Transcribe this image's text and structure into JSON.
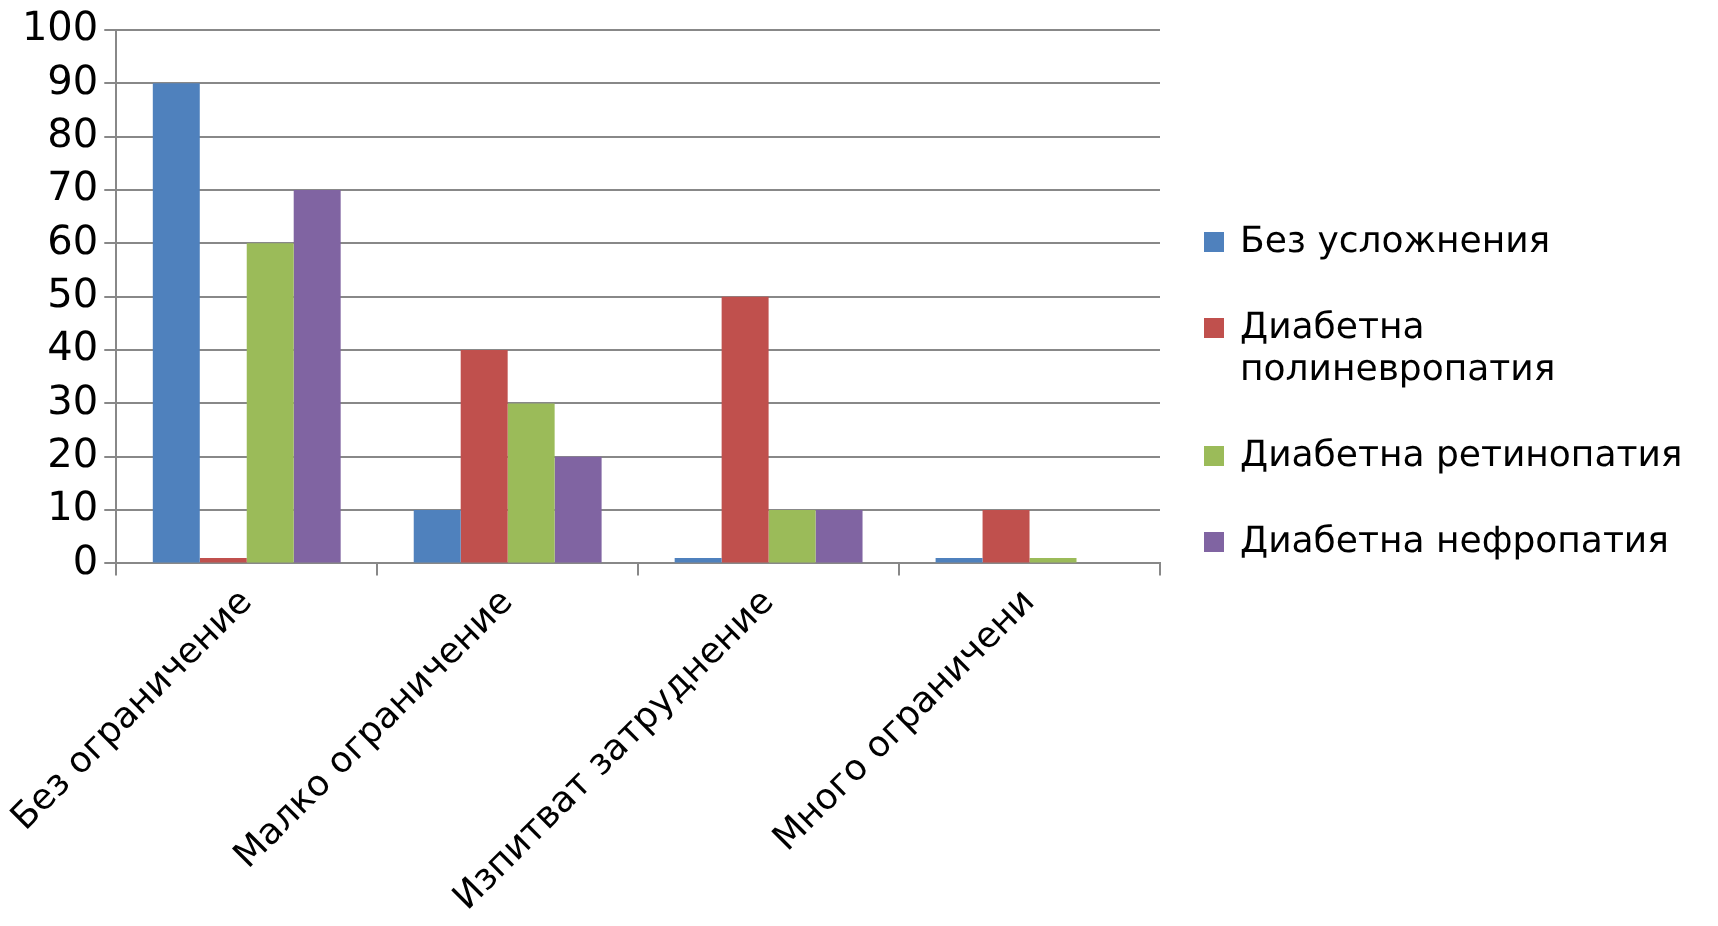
{
  "chart_data": {
    "type": "bar",
    "categories": [
      "Без ограничение",
      "Малко ограничение",
      "Изпитват затруднение",
      "Много ограничени"
    ],
    "series": [
      {
        "name": "Без усложнения",
        "color": "#4f81bd",
        "values": [
          90,
          10,
          1,
          1
        ]
      },
      {
        "name": "Диабетна полиневропатия",
        "color": "#c0504d",
        "values": [
          1,
          40,
          50,
          10
        ]
      },
      {
        "name": "Диабетна ретинопатия",
        "color": "#9bbb59",
        "values": [
          60,
          30,
          10,
          1
        ]
      },
      {
        "name": "Диабетна нефропатия",
        "color": "#8064a2",
        "values": [
          70,
          20,
          10,
          0
        ]
      }
    ],
    "ylim": [
      0,
      100
    ],
    "yticks": [
      0,
      10,
      20,
      30,
      40,
      50,
      60,
      70,
      80,
      90,
      100
    ],
    "grid": "y",
    "legend": "right"
  }
}
